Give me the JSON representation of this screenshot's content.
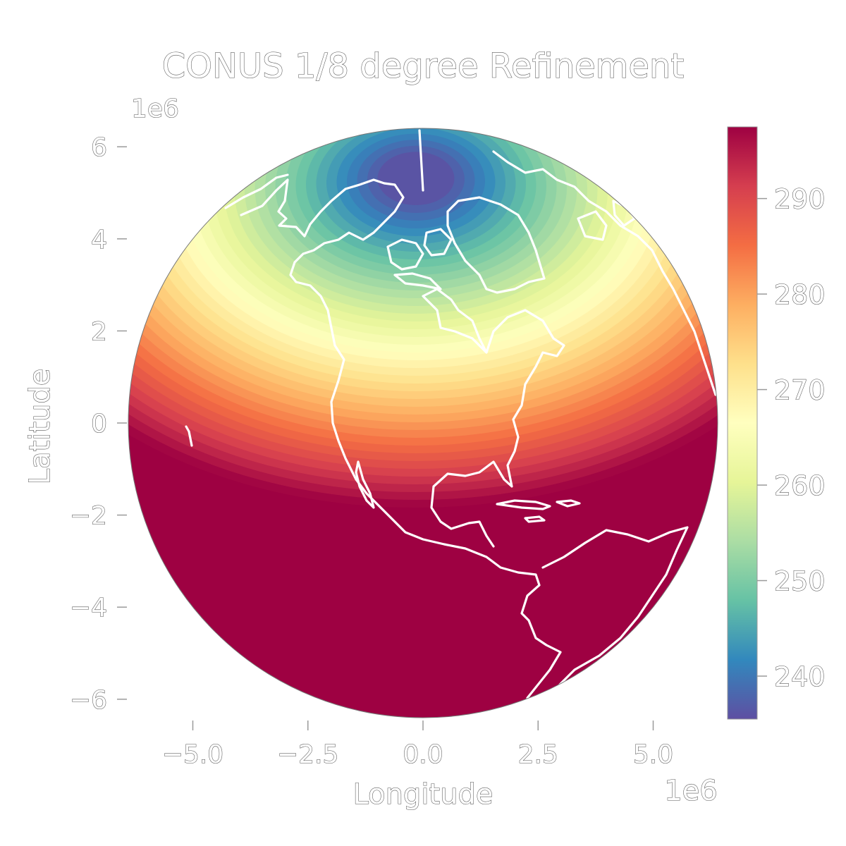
{
  "chart_data": {
    "type": "heatmap",
    "title": "CONUS 1/8 degree Refinement",
    "xlabel": "Longitude",
    "ylabel": "Latitude",
    "x_offset_label": "1e6",
    "y_offset_label": "1e6",
    "x_ticks": [
      {
        "value": -5.0,
        "label": "−5.0"
      },
      {
        "value": -2.5,
        "label": "−2.5"
      },
      {
        "value": 0.0,
        "label": "0.0"
      },
      {
        "value": 2.5,
        "label": "2.5"
      },
      {
        "value": 5.0,
        "label": "5.0"
      }
    ],
    "y_ticks": [
      {
        "value": 6,
        "label": "6"
      },
      {
        "value": 4,
        "label": "4"
      },
      {
        "value": 2,
        "label": "2"
      },
      {
        "value": 0,
        "label": "0"
      },
      {
        "value": -2,
        "label": "−2"
      },
      {
        "value": -4,
        "label": "−4"
      },
      {
        "value": -6,
        "label": "−6"
      }
    ],
    "xlim": [
      -6.4,
      6.4
    ],
    "ylim": [
      -6.4,
      6.4
    ],
    "colorbar": {
      "colormap": "Spectral_r",
      "range": [
        235.5,
        297.5
      ],
      "ticks": [
        {
          "value": 240,
          "label": "240"
        },
        {
          "value": 250,
          "label": "250"
        },
        {
          "value": 260,
          "label": "260"
        },
        {
          "value": 270,
          "label": "270"
        },
        {
          "value": 280,
          "label": "280"
        },
        {
          "value": 290,
          "label": "290"
        }
      ],
      "colors": [
        "#5e4fa2",
        "#3288bd",
        "#66c2a5",
        "#abdda4",
        "#e6f598",
        "#ffffbf",
        "#fee08b",
        "#fdae61",
        "#f46d43",
        "#d53e4f",
        "#9e0142"
      ]
    },
    "field": {
      "description_of_gradient": "temperature rises from pole toward equator",
      "pole_value": 236,
      "equator_value": 297
    },
    "grid": false
  }
}
